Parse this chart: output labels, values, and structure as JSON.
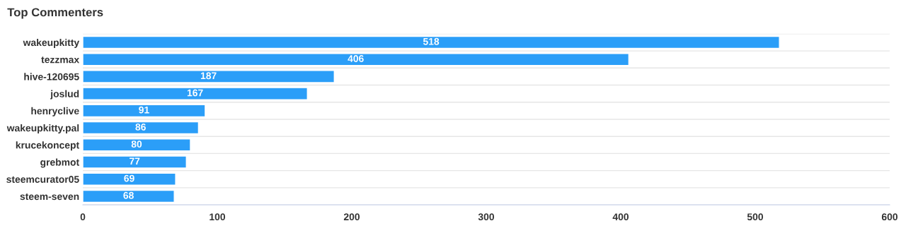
{
  "chart_data": {
    "type": "bar",
    "orientation": "horizontal",
    "title": "Top Commenters",
    "categories": [
      "wakeupkitty",
      "tezzmax",
      "hive-120695",
      "joslud",
      "henryclive",
      "wakeupkitty.pal",
      "krucekoncept",
      "grebmot",
      "steemcurator05",
      "steem-seven"
    ],
    "values": [
      518,
      406,
      187,
      167,
      91,
      86,
      80,
      77,
      69,
      68
    ],
    "color": "#2b9ef8",
    "xlim": [
      0,
      600
    ],
    "xticks": [
      0,
      100,
      200,
      300,
      400,
      500,
      600
    ],
    "grid": "y",
    "data_labels": true
  }
}
